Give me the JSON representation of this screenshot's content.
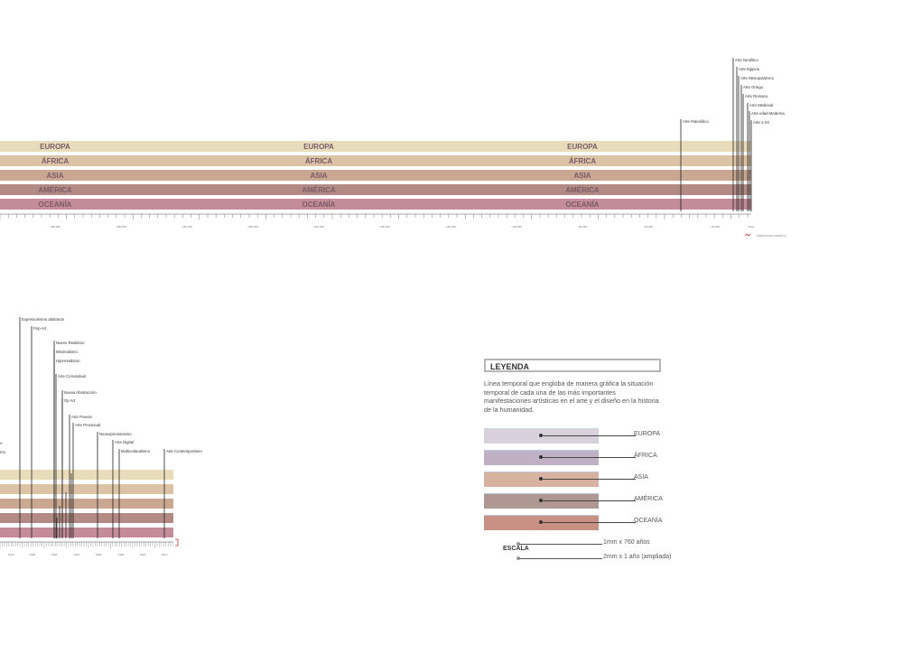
{
  "regions": [
    {
      "name": "EUROPA",
      "color": "#e9dcba"
    },
    {
      "name": "ÁFRICA",
      "color": "#dcc3a5"
    },
    {
      "name": "ASIA",
      "color": "#c9a790"
    },
    {
      "name": "AMÉRICA",
      "color": "#b38b84"
    },
    {
      "name": "OCEANÍA",
      "color": "#c48b98"
    }
  ],
  "top_timeline": {
    "axis_labels": [
      "-400.000",
      "-360.000",
      "-320.000",
      "-280.000",
      "-240.000",
      "-200.000",
      "-160.000",
      "-120.000",
      "-80.000",
      "-40.000",
      "-20.000"
    ],
    "end_label": "Días",
    "ampliation_label": "AMPLIACIÓN GRÁFICA",
    "art_periods": [
      "Arte Paleolítico",
      "Arte Neolítico",
      "Arte Egipcio",
      "Arte Mesopotámico",
      "Arte Griego",
      "Arte Romano",
      "Arte Medieval",
      "Arte edad Moderna",
      "Arte s.XX"
    ]
  },
  "bottom_timeline": {
    "axis_labels": [
      "1940",
      "1950",
      "1960",
      "1970",
      "1980",
      "1990",
      "2000",
      "2010"
    ],
    "art_movements": [
      "Expresionismo abstracto",
      "Pop Art",
      "Nuevo Realismo",
      "Minimalismo",
      "Hiperrealismo",
      "Arte Conceptual",
      "Nueva Abstracción",
      "Op Art",
      "Arte Povera",
      "Arte Procesual",
      "Neoexpresionismo",
      "Arte Digital",
      "Multiculturalismo",
      "Arte Contemporáneo"
    ],
    "cut_labels": [
      "o",
      "mo"
    ]
  },
  "legend": {
    "title": "LEYENDA",
    "description": "Línea temporal que engloba de manera gráfica la situación temporal de cada una de las más importantes manifestaciones artísticas en el arte y el diseño en la historia de la humanidad.",
    "items": [
      {
        "label": "EUROPA",
        "color": "#d8d1dc",
        "border": "#c7d6e6"
      },
      {
        "label": "ÁFRICA",
        "color": "#bfb0c4",
        "border": "#b5c8de"
      },
      {
        "label": "ASIA",
        "color": "#d7b2a0",
        "border": "#bcc9dc"
      },
      {
        "label": "AMÉRICA",
        "color": "#b09892",
        "border": "#b8c6d8"
      },
      {
        "label": "OCEANÍA",
        "color": "#c99184",
        "border": "#b9c7da"
      }
    ],
    "scale_title": "ESCALA",
    "scales": [
      "1mm x 760 años",
      "2mm x 1 año (ampliada)"
    ]
  }
}
